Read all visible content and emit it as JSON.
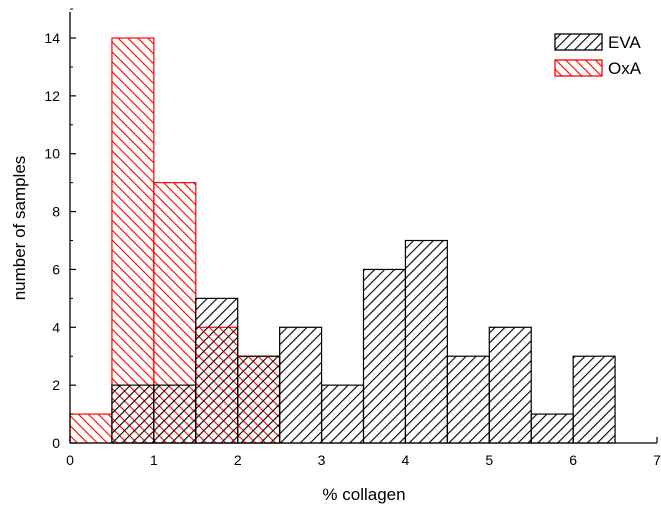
{
  "chart_data": {
    "type": "bar",
    "subtype": "histogram-overlay",
    "xlabel": "% collagen",
    "ylabel": "number of samples",
    "xlim": [
      0,
      7
    ],
    "ylim": [
      0,
      15
    ],
    "x_ticks": [
      0,
      1,
      2,
      3,
      4,
      5,
      6,
      7
    ],
    "y_ticks": [
      0,
      2,
      4,
      6,
      8,
      10,
      12,
      14
    ],
    "bin_width": 0.5,
    "grid": false,
    "legend_position": "top-right",
    "series": [
      {
        "name": "EVA",
        "color": "#000000",
        "hatch": "diagonal-up",
        "bins": [
          {
            "start": 0.5,
            "end": 1.0,
            "count": 2
          },
          {
            "start": 1.0,
            "end": 1.5,
            "count": 2
          },
          {
            "start": 1.5,
            "end": 2.0,
            "count": 5
          },
          {
            "start": 2.0,
            "end": 2.5,
            "count": 3
          },
          {
            "start": 2.5,
            "end": 3.0,
            "count": 4
          },
          {
            "start": 3.0,
            "end": 3.5,
            "count": 2
          },
          {
            "start": 3.5,
            "end": 4.0,
            "count": 6
          },
          {
            "start": 4.0,
            "end": 4.5,
            "count": 7
          },
          {
            "start": 4.5,
            "end": 5.0,
            "count": 3
          },
          {
            "start": 5.0,
            "end": 5.5,
            "count": 4
          },
          {
            "start": 5.5,
            "end": 6.0,
            "count": 1
          },
          {
            "start": 6.0,
            "end": 6.5,
            "count": 3
          }
        ]
      },
      {
        "name": "OxA",
        "color": "#ff0000",
        "hatch": "diagonal-down",
        "bins": [
          {
            "start": 0.0,
            "end": 0.5,
            "count": 1
          },
          {
            "start": 0.5,
            "end": 1.0,
            "count": 14
          },
          {
            "start": 1.0,
            "end": 1.5,
            "count": 9
          },
          {
            "start": 1.5,
            "end": 2.0,
            "count": 4
          },
          {
            "start": 2.0,
            "end": 2.5,
            "count": 3
          }
        ]
      }
    ]
  }
}
